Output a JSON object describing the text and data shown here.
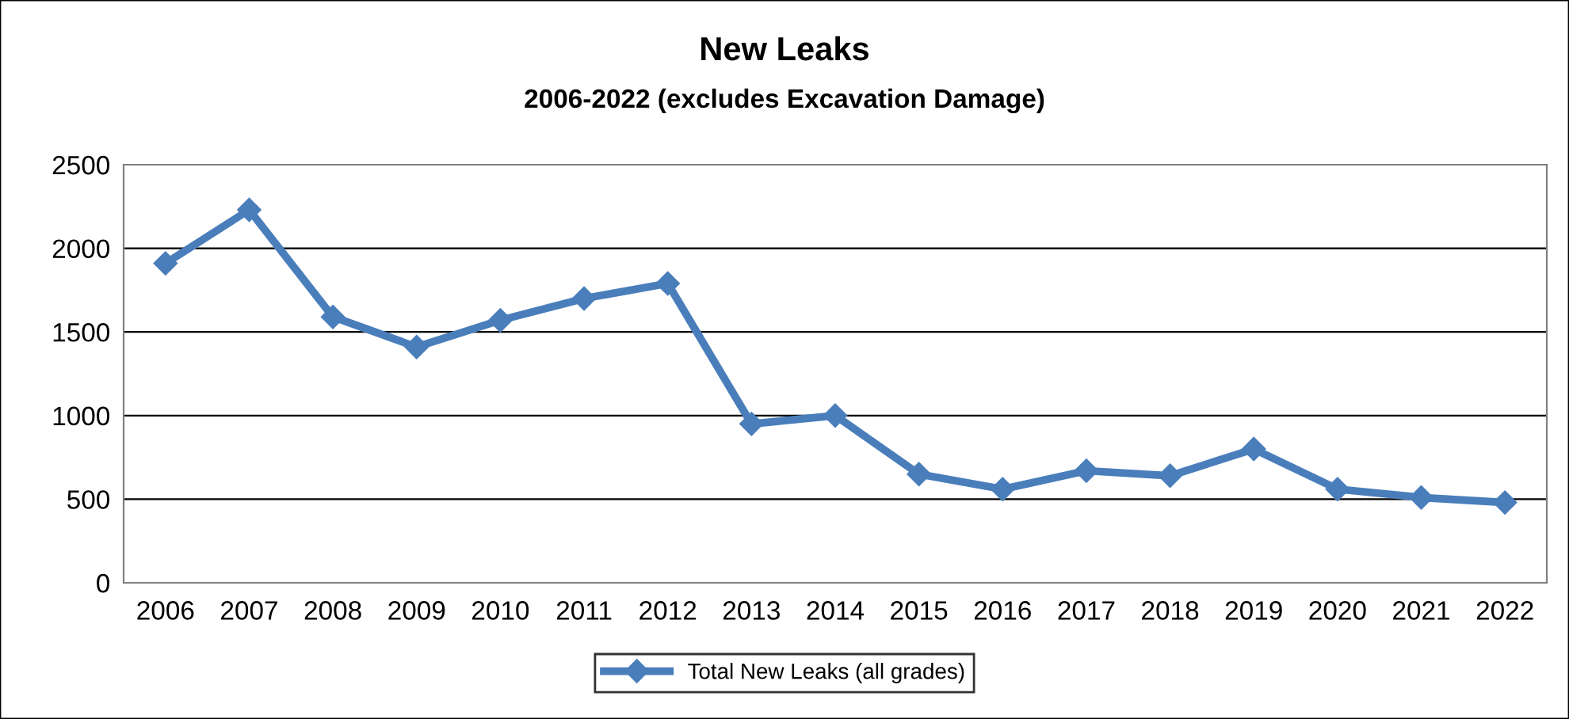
{
  "chart_data": {
    "type": "line",
    "title": "New Leaks",
    "subtitle": "2006-2022 (excludes Excavation Damage)",
    "categories": [
      "2006",
      "2007",
      "2008",
      "2009",
      "2010",
      "2011",
      "2012",
      "2013",
      "2014",
      "2015",
      "2016",
      "2017",
      "2018",
      "2019",
      "2020",
      "2021",
      "2022"
    ],
    "series": [
      {
        "name": "Total New Leaks (all grades)",
        "color": "#4a7ebb",
        "values": [
          1910,
          2230,
          1590,
          1410,
          1570,
          1700,
          1790,
          950,
          1000,
          650,
          560,
          670,
          640,
          800,
          560,
          510,
          480
        ]
      }
    ],
    "ylim": [
      0,
      2500
    ],
    "yticks": [
      0,
      500,
      1000,
      1500,
      2000,
      2500
    ],
    "grid": "y",
    "legend": "bottom",
    "marker": "diamond",
    "line_style": "solid"
  }
}
